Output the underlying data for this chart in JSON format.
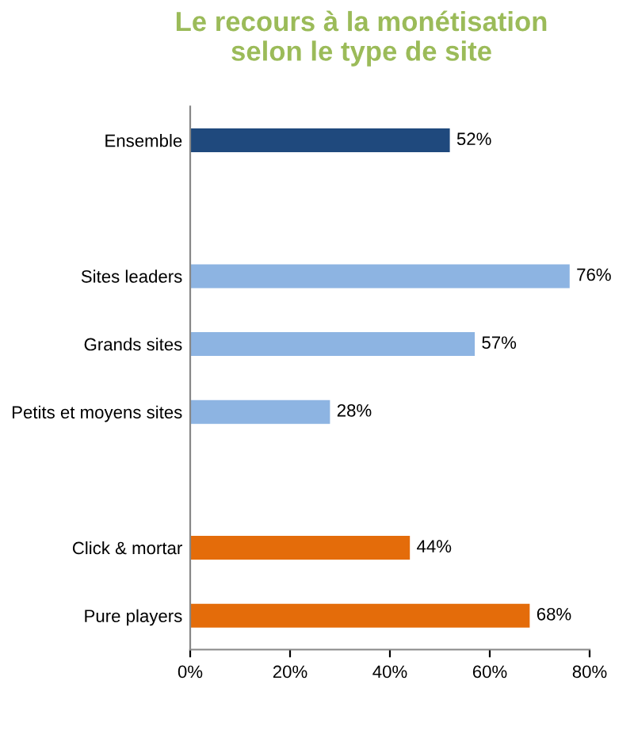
{
  "chart_data": {
    "type": "bar",
    "orientation": "horizontal",
    "title": "Le recours à la monétisation\nselon le type de site",
    "categories": [
      "Ensemble",
      null,
      "Sites leaders",
      "Grands sites",
      "Petits et moyens sites",
      null,
      "Click & mortar",
      "Pure players"
    ],
    "values": [
      52,
      null,
      76,
      57,
      28,
      null,
      44,
      68
    ],
    "colors": [
      "#1f497d",
      null,
      "#8db4e2",
      "#8db4e2",
      "#8db4e2",
      null,
      "#e46c0a",
      "#e46c0a"
    ],
    "value_labels": [
      "52%",
      null,
      "76%",
      "57%",
      "28%",
      null,
      "44%",
      "68%"
    ],
    "xlim": [
      0,
      80
    ],
    "xticks": [
      {
        "value": 0,
        "label": "0%"
      },
      {
        "value": 20,
        "label": "20%"
      },
      {
        "value": 40,
        "label": "40%"
      },
      {
        "value": 60,
        "label": "60%"
      },
      {
        "value": 80,
        "label": "80%"
      }
    ],
    "grid": false,
    "legend": false
  }
}
